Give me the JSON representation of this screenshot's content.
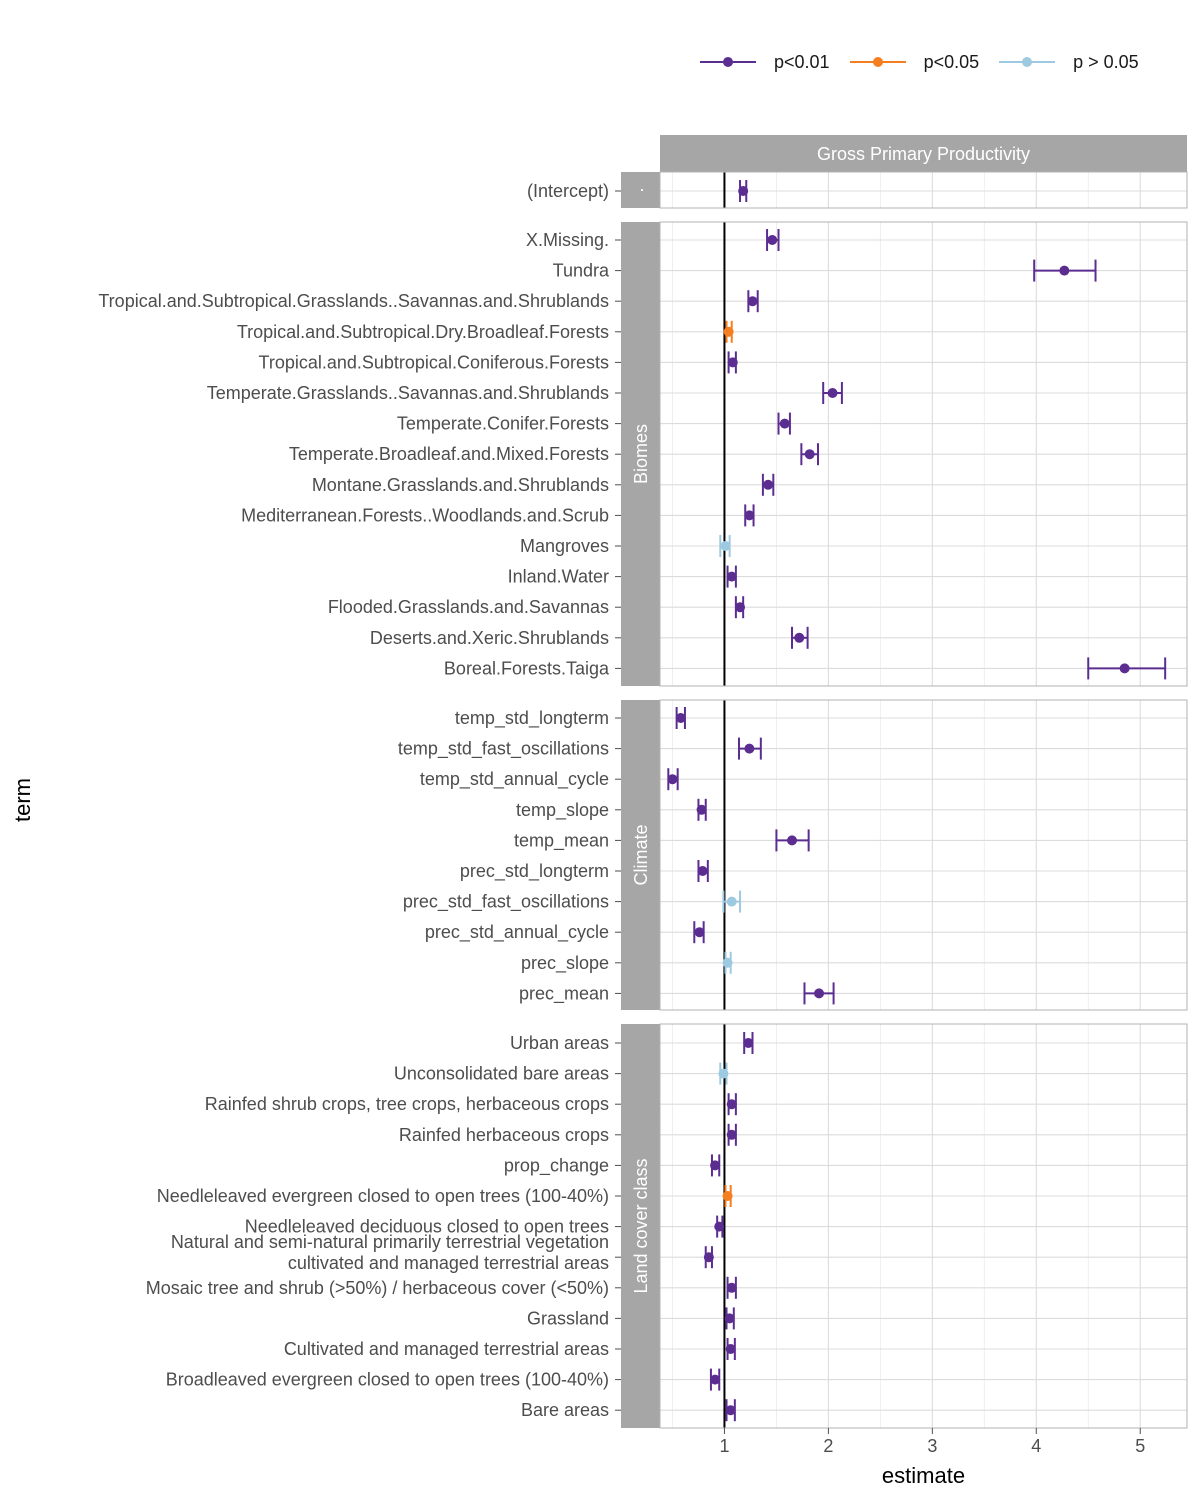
{
  "chart_data": {
    "type": "scatter",
    "subtype": "point-range (estimate with confidence interval), faceted",
    "panel_strip": "Gross Primary Productivity",
    "xlabel": "estimate",
    "ylabel": "term",
    "xlim": [
      0.38,
      5.45
    ],
    "x_ticks": [
      1,
      2,
      3,
      4,
      5
    ],
    "reference_line_x": 1,
    "grid": true,
    "legend_position": "top-right",
    "legend": [
      {
        "label": "p<0.01",
        "color": "#5c2d91"
      },
      {
        "label": "p<0.05",
        "color": "#f57e20"
      },
      {
        "label": "p > 0.05",
        "color": "#9ecae1"
      }
    ],
    "groups": [
      {
        "name": "·",
        "points": [
          {
            "term": "(Intercept)",
            "estimate": 1.18,
            "low": 1.15,
            "high": 1.21,
            "sig": "p<0.01"
          }
        ]
      },
      {
        "name": "Biomes",
        "points": [
          {
            "term": "X.Missing.",
            "estimate": 1.46,
            "low": 1.41,
            "high": 1.52,
            "sig": "p<0.01"
          },
          {
            "term": "Tundra",
            "estimate": 4.27,
            "low": 3.98,
            "high": 4.57,
            "sig": "p<0.01"
          },
          {
            "term": "Tropical.and.Subtropical.Grasslands..Savannas.and.Shrublands",
            "estimate": 1.27,
            "low": 1.23,
            "high": 1.32,
            "sig": "p<0.01"
          },
          {
            "term": "Tropical.and.Subtropical.Dry.Broadleaf.Forests",
            "estimate": 1.04,
            "low": 1.02,
            "high": 1.07,
            "sig": "p<0.05"
          },
          {
            "term": "Tropical.and.Subtropical.Coniferous.Forests",
            "estimate": 1.08,
            "low": 1.04,
            "high": 1.11,
            "sig": "p<0.01"
          },
          {
            "term": "Temperate.Grasslands..Savannas.and.Shrublands",
            "estimate": 2.04,
            "low": 1.95,
            "high": 2.13,
            "sig": "p<0.01"
          },
          {
            "term": "Temperate.Conifer.Forests",
            "estimate": 1.58,
            "low": 1.52,
            "high": 1.63,
            "sig": "p<0.01"
          },
          {
            "term": "Temperate.Broadleaf.and.Mixed.Forests",
            "estimate": 1.82,
            "low": 1.74,
            "high": 1.9,
            "sig": "p<0.01"
          },
          {
            "term": "Montane.Grasslands.and.Shrublands",
            "estimate": 1.42,
            "low": 1.37,
            "high": 1.47,
            "sig": "p<0.01"
          },
          {
            "term": "Mediterranean.Forests..Woodlands.and.Scrub",
            "estimate": 1.24,
            "low": 1.2,
            "high": 1.28,
            "sig": "p<0.01"
          },
          {
            "term": "Mangroves",
            "estimate": 1.01,
            "low": 0.96,
            "high": 1.05,
            "sig": "p > 0.05"
          },
          {
            "term": "Inland.Water",
            "estimate": 1.07,
            "low": 1.03,
            "high": 1.11,
            "sig": "p<0.01"
          },
          {
            "term": "Flooded.Grasslands.and.Savannas",
            "estimate": 1.15,
            "low": 1.11,
            "high": 1.18,
            "sig": "p<0.01"
          },
          {
            "term": "Deserts.and.Xeric.Shrublands",
            "estimate": 1.72,
            "low": 1.65,
            "high": 1.8,
            "sig": "p<0.01"
          },
          {
            "term": "Boreal.Forests.Taiga",
            "estimate": 4.85,
            "low": 4.5,
            "high": 5.24,
            "sig": "p<0.01"
          }
        ]
      },
      {
        "name": "Climate",
        "points": [
          {
            "term": "temp_std_longterm",
            "estimate": 0.58,
            "low": 0.54,
            "high": 0.62,
            "sig": "p<0.01"
          },
          {
            "term": "temp_std_fast_oscillations",
            "estimate": 1.24,
            "low": 1.14,
            "high": 1.35,
            "sig": "p<0.01"
          },
          {
            "term": "temp_std_annual_cycle",
            "estimate": 0.5,
            "low": 0.46,
            "high": 0.55,
            "sig": "p<0.01"
          },
          {
            "term": "temp_slope",
            "estimate": 0.78,
            "low": 0.75,
            "high": 0.82,
            "sig": "p<0.01"
          },
          {
            "term": "temp_mean",
            "estimate": 1.65,
            "low": 1.5,
            "high": 1.81,
            "sig": "p<0.01"
          },
          {
            "term": "prec_std_longterm",
            "estimate": 0.79,
            "low": 0.75,
            "high": 0.84,
            "sig": "p<0.01"
          },
          {
            "term": "prec_std_fast_oscillations",
            "estimate": 1.07,
            "low": 0.99,
            "high": 1.15,
            "sig": "p > 0.05"
          },
          {
            "term": "prec_std_annual_cycle",
            "estimate": 0.76,
            "low": 0.71,
            "high": 0.8,
            "sig": "p<0.01"
          },
          {
            "term": "prec_slope",
            "estimate": 1.03,
            "low": 1.01,
            "high": 1.06,
            "sig": "p > 0.05"
          },
          {
            "term": "prec_mean",
            "estimate": 1.91,
            "low": 1.77,
            "high": 2.05,
            "sig": "p<0.01"
          }
        ]
      },
      {
        "name": "Land cover class",
        "points": [
          {
            "term": "Urban areas",
            "estimate": 1.23,
            "low": 1.19,
            "high": 1.27,
            "sig": "p<0.01"
          },
          {
            "term": "Unconsolidated bare areas",
            "estimate": 0.99,
            "low": 0.96,
            "high": 1.02,
            "sig": "p > 0.05"
          },
          {
            "term": "Rainfed shrub crops, tree crops, herbaceous crops",
            "estimate": 1.07,
            "low": 1.04,
            "high": 1.11,
            "sig": "p<0.01"
          },
          {
            "term": "Rainfed herbaceous crops",
            "estimate": 1.07,
            "low": 1.04,
            "high": 1.11,
            "sig": "p<0.01"
          },
          {
            "term": "prop_change",
            "estimate": 0.91,
            "low": 0.88,
            "high": 0.95,
            "sig": "p<0.01"
          },
          {
            "term": "Needleleaved evergreen closed to open trees (100-40%)",
            "estimate": 1.03,
            "low": 1.01,
            "high": 1.06,
            "sig": "p<0.05"
          },
          {
            "term": "Needleleaved deciduous closed to open trees",
            "estimate": 0.95,
            "low": 0.93,
            "high": 0.98,
            "sig": "p<0.01"
          },
          {
            "term": "Natural and semi-natural primarily terrestrial vegetation\ncultivated and managed terrestrial areas",
            "estimate": 0.85,
            "low": 0.82,
            "high": 0.88,
            "sig": "p<0.01"
          },
          {
            "term": "Mosaic tree and shrub (>50%) / herbaceous cover (<50%)",
            "estimate": 1.07,
            "low": 1.03,
            "high": 1.11,
            "sig": "p<0.01"
          },
          {
            "term": "Grassland",
            "estimate": 1.05,
            "low": 1.02,
            "high": 1.09,
            "sig": "p<0.01"
          },
          {
            "term": "Cultivated and managed terrestrial areas",
            "estimate": 1.06,
            "low": 1.03,
            "high": 1.1,
            "sig": "p<0.01"
          },
          {
            "term": "Broadleaved evergreen closed to open trees (100-40%)",
            "estimate": 0.91,
            "low": 0.87,
            "high": 0.95,
            "sig": "p<0.01"
          },
          {
            "term": "Bare areas",
            "estimate": 1.06,
            "low": 1.02,
            "high": 1.1,
            "sig": "p<0.01"
          }
        ]
      }
    ]
  }
}
